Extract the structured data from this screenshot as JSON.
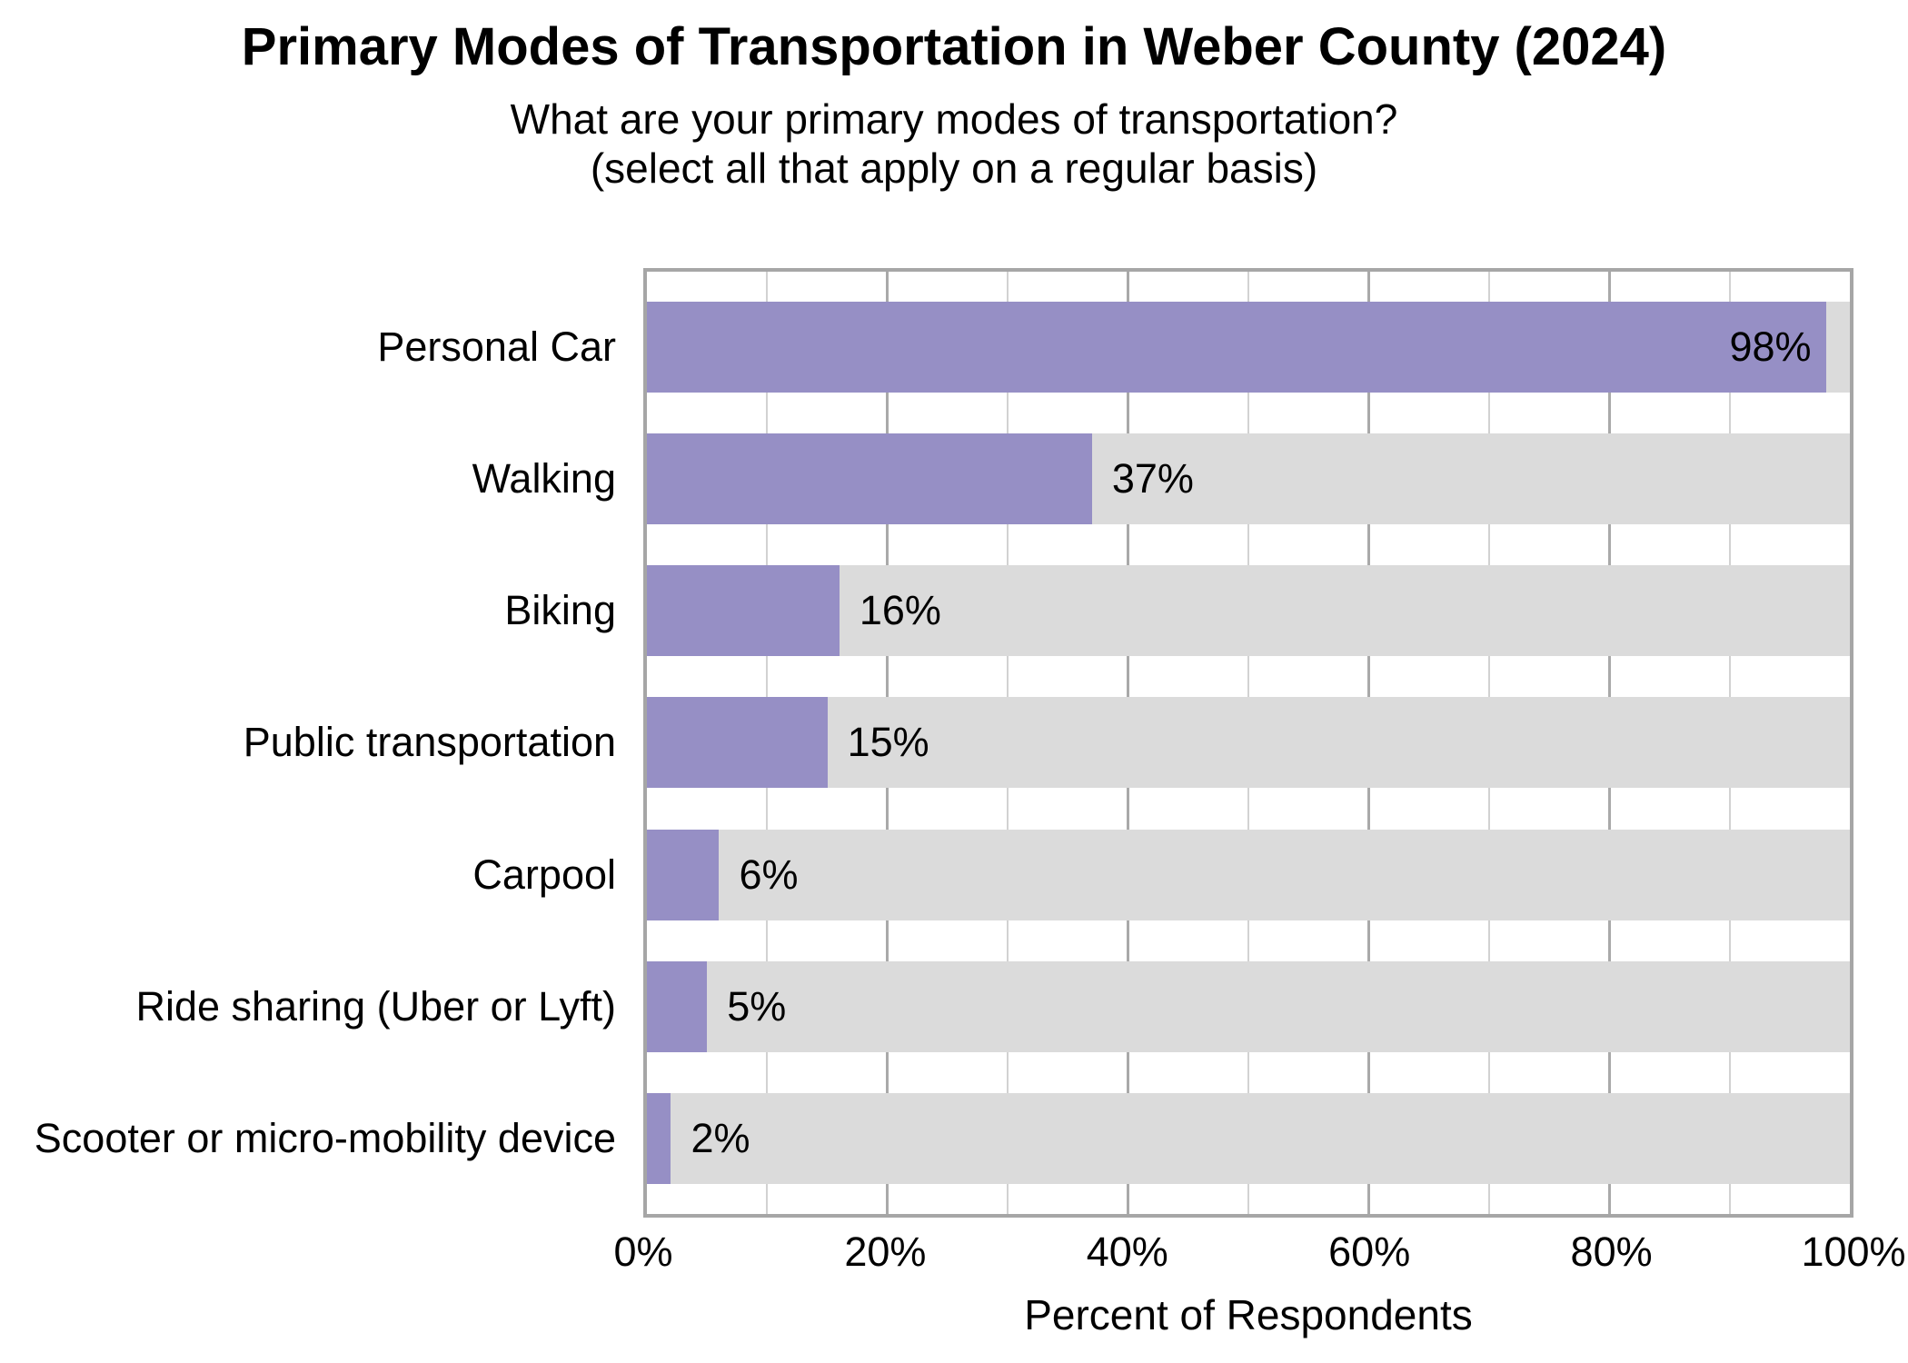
{
  "header": {
    "title": "Primary Modes of Transportation in Weber County (2024)",
    "subtitle_line1": "What are your primary modes of transportation?",
    "subtitle_line2": "(select all that apply on a regular basis)"
  },
  "chart_data": {
    "type": "bar",
    "orientation": "horizontal",
    "title": "Primary Modes of Transportation in Weber County (2024)",
    "subtitle": "What are your primary modes of transportation? (select all that apply on a regular basis)",
    "categories": [
      "Personal Car",
      "Walking",
      "Biking",
      "Public transportation",
      "Carpool",
      "Ride sharing (Uber or Lyft)",
      "Scooter or micro-mobility device"
    ],
    "values": [
      98,
      37,
      16,
      15,
      6,
      5,
      2
    ],
    "value_labels": [
      "98%",
      "37%",
      "16%",
      "15%",
      "6%",
      "5%",
      "2%"
    ],
    "xlabel": "Percent of Respondents",
    "ylabel": "",
    "xlim": [
      0,
      100
    ],
    "x_ticks": [
      0,
      20,
      40,
      60,
      80,
      100
    ],
    "x_tick_labels": [
      "0%",
      "20%",
      "40%",
      "60%",
      "80%",
      "100%"
    ],
    "minor_gridline_interval": 10,
    "major_gridline_interval": 20,
    "grid": true,
    "legend_position": "none",
    "label_inside_threshold": 90,
    "colors": {
      "bar": "#968fc5",
      "track": "#dbdbdb",
      "grid_minor": "#d2d2d2",
      "grid_major": "#a9a9a9",
      "border": "#a6a6a6",
      "text": "#000000",
      "background": "#ffffff"
    }
  }
}
